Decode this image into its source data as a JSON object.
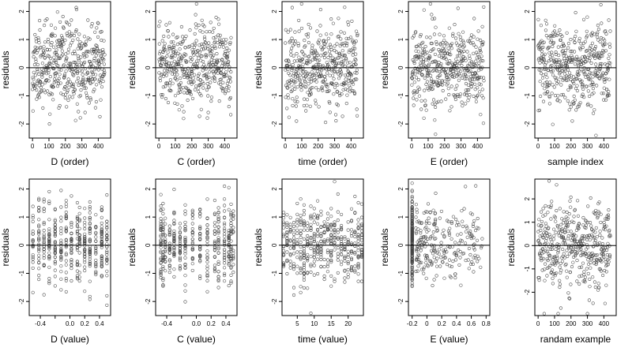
{
  "figure": {
    "background": "#ffffff",
    "point_color": "#444444"
  },
  "chart_data": [
    {
      "type": "scatter",
      "xlabel": "D (order)",
      "ylabel": "residuals",
      "xlim": [
        -20,
        475
      ],
      "ylim": [
        -2.5,
        2.35
      ],
      "xticks": [
        0,
        100,
        200,
        300,
        400
      ],
      "yticks": [
        -2,
        -1,
        0,
        1,
        2
      ],
      "hline": 0,
      "gen": "order",
      "n": 440,
      "seed": 11,
      "sd": 0.72
    },
    {
      "type": "scatter",
      "xlabel": "C (order)",
      "ylabel": "residuals",
      "xlim": [
        -20,
        475
      ],
      "ylim": [
        -2.5,
        2.35
      ],
      "xticks": [
        0,
        100,
        200,
        300,
        400
      ],
      "yticks": [
        -2,
        -1,
        0,
        1,
        2
      ],
      "hline": 0,
      "gen": "order",
      "n": 440,
      "seed": 23,
      "sd": 0.72
    },
    {
      "type": "scatter",
      "xlabel": "time (order)",
      "ylabel": "residuals",
      "xlim": [
        -20,
        475
      ],
      "ylim": [
        -2.5,
        2.35
      ],
      "xticks": [
        0,
        100,
        200,
        300,
        400
      ],
      "yticks": [
        -2,
        -1,
        0,
        1,
        2
      ],
      "hline": 0,
      "gen": "order",
      "n": 440,
      "seed": 37,
      "sd": 0.72
    },
    {
      "type": "scatter",
      "xlabel": "E (order)",
      "ylabel": "residuals",
      "xlim": [
        -20,
        475
      ],
      "ylim": [
        -2.5,
        2.35
      ],
      "xticks": [
        0,
        100,
        200,
        300,
        400
      ],
      "yticks": [
        -2,
        -1,
        0,
        1,
        2
      ],
      "hline": 0,
      "gen": "order",
      "n": 440,
      "seed": 41,
      "sd": 0.72
    },
    {
      "type": "scatter",
      "xlabel": "sample index",
      "ylabel": "residuals",
      "xlim": [
        -20,
        475
      ],
      "ylim": [
        -2.5,
        2.35
      ],
      "xticks": [
        0,
        100,
        200,
        300,
        400
      ],
      "yticks": [
        -2,
        -1,
        0,
        1,
        2
      ],
      "hline": 0,
      "gen": "order",
      "n": 440,
      "seed": 53,
      "sd": 0.72
    },
    {
      "type": "scatter",
      "xlabel": "D (value)",
      "ylabel": "residuals",
      "xlim": [
        -0.55,
        0.55
      ],
      "ylim": [
        -2.5,
        2.35
      ],
      "xticks": [
        -0.4,
        -0.2,
        0.0,
        0.2,
        0.4
      ],
      "xtick_labels": [
        "-0.4",
        "",
        "0.0",
        "0.2",
        "0.4"
      ],
      "yticks": [
        -2,
        -1,
        0,
        1,
        2
      ],
      "hline": 0,
      "gen": "discrete",
      "levels": [
        -0.5,
        -0.42,
        -0.35,
        -0.28,
        -0.2,
        -0.12,
        -0.05,
        0.02,
        0.1,
        0.13,
        0.2,
        0.27,
        0.35,
        0.43,
        0.5
      ],
      "n": 440,
      "seed": 61,
      "sd": 0.7
    },
    {
      "type": "scatter",
      "xlabel": "C (value)",
      "ylabel": "residuals",
      "xlim": [
        -0.55,
        0.55
      ],
      "ylim": [
        -2.5,
        2.35
      ],
      "xticks": [
        -0.4,
        -0.2,
        0.0,
        0.2,
        0.4
      ],
      "xtick_labels": [
        "-0.4",
        "",
        "0.0",
        "0.2",
        "0.4"
      ],
      "yticks": [
        -2,
        -1,
        0,
        1,
        2
      ],
      "hline": 0,
      "gen": "discrete",
      "levels": [
        -0.48,
        -0.45,
        -0.42,
        -0.36,
        -0.3,
        -0.22,
        -0.15,
        -0.05,
        0.05,
        0.15,
        0.25,
        0.3,
        0.38,
        0.44,
        0.47,
        0.5
      ],
      "n": 440,
      "seed": 71,
      "sd": 0.7
    },
    {
      "type": "scatter",
      "xlabel": "time (value)",
      "ylabel": "residuals",
      "xlim": [
        0.5,
        24.5
      ],
      "ylim": [
        -2.5,
        2.35
      ],
      "xticks": [
        5,
        10,
        15,
        20
      ],
      "yticks": [
        -2,
        -1,
        0,
        1,
        2
      ],
      "hline": 0,
      "gen": "discrete",
      "levels": [
        1,
        2,
        3,
        4,
        5,
        6,
        7,
        8,
        9,
        10,
        11,
        12,
        13,
        14,
        15,
        16,
        17,
        18,
        19,
        20,
        21,
        22,
        23,
        24
      ],
      "n": 440,
      "seed": 83,
      "sd": 0.7
    },
    {
      "type": "scatter",
      "xlabel": "E (value)",
      "ylabel": "residuals",
      "xlim": [
        -0.25,
        0.85
      ],
      "ylim": [
        -2.5,
        2.35
      ],
      "xticks": [
        -0.2,
        0.0,
        0.2,
        0.4,
        0.6,
        0.8
      ],
      "yticks": [
        -2,
        -1,
        0,
        1,
        2
      ],
      "hline": 0,
      "gen": "skewed",
      "n": 440,
      "seed": 97,
      "sd": 0.7
    },
    {
      "type": "scatter",
      "xlabel": "randam example",
      "ylabel": "residuals",
      "xlim": [
        -20,
        475
      ],
      "ylim": [
        -3.0,
        2.85
      ],
      "xticks": [
        0,
        100,
        200,
        300,
        400
      ],
      "yticks": [
        -2,
        -1,
        0,
        1,
        2
      ],
      "hline": 0,
      "gen": "order",
      "n": 440,
      "seed": 109,
      "sd": 0.95
    }
  ]
}
